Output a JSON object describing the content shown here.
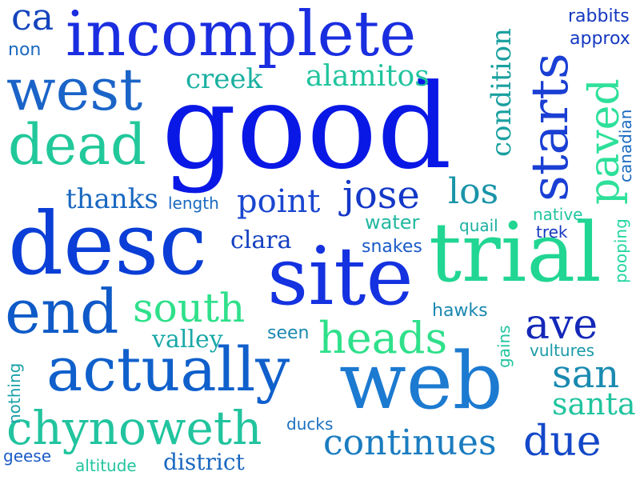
{
  "words": [
    {
      "key": "good",
      "text": "good",
      "color": "#0a18e6"
    },
    {
      "key": "site",
      "text": "site",
      "color": "#1432e0"
    },
    {
      "key": "trial",
      "text": "trial",
      "color": "#21d693"
    },
    {
      "key": "desc",
      "text": "desc",
      "color": "#0a3ed6"
    },
    {
      "key": "incomplete",
      "text": "incomplete",
      "color": "#1a2ee0"
    },
    {
      "key": "web",
      "text": "web",
      "color": "#1c7ad0"
    },
    {
      "key": "actually",
      "text": "actually",
      "color": "#1060cc"
    },
    {
      "key": "end",
      "text": "end",
      "color": "#0f5ac8"
    },
    {
      "key": "west",
      "text": "west",
      "color": "#1a64c8"
    },
    {
      "key": "dead",
      "text": "dead",
      "color": "#21c89a"
    },
    {
      "key": "starts",
      "text": "starts",
      "color": "#1a3fd4"
    },
    {
      "key": "paved",
      "text": "paved",
      "color": "#2ee09a"
    },
    {
      "key": "chynoweth",
      "text": "chynoweth",
      "color": "#21c49e"
    },
    {
      "key": "south",
      "text": "south",
      "color": "#2ee08a"
    },
    {
      "key": "heads",
      "text": "heads",
      "color": "#2ee08a"
    },
    {
      "key": "point",
      "text": "point",
      "color": "#1a46d0"
    },
    {
      "key": "jose",
      "text": "jose",
      "color": "#1438c8"
    },
    {
      "key": "ave",
      "text": "ave",
      "color": "#1428b8"
    },
    {
      "key": "san",
      "text": "san",
      "color": "#1a8ab0"
    },
    {
      "key": "due",
      "text": "due",
      "color": "#1448c8"
    },
    {
      "key": "continues",
      "text": "continues",
      "color": "#1a7cc0"
    },
    {
      "key": "santa",
      "text": "santa",
      "color": "#21c49e"
    },
    {
      "key": "los",
      "text": "los",
      "color": "#1a94a8"
    },
    {
      "key": "condition",
      "text": "condition",
      "color": "#1aa0a0"
    },
    {
      "key": "ca",
      "text": "ca",
      "color": "#1444bc"
    },
    {
      "key": "alamitos",
      "text": "alamitos",
      "color": "#21c49e"
    },
    {
      "key": "creek",
      "text": "creek",
      "color": "#1ab0a0"
    },
    {
      "key": "thanks",
      "text": "thanks",
      "color": "#1a68c0"
    },
    {
      "key": "clara",
      "text": "clara",
      "color": "#1440c0"
    },
    {
      "key": "valley",
      "text": "valley",
      "color": "#1aa8a8"
    },
    {
      "key": "district",
      "text": "district",
      "color": "#1a68c0"
    },
    {
      "key": "water",
      "text": "water",
      "color": "#21b8a0"
    },
    {
      "key": "seen",
      "text": "seen",
      "color": "#1a88b0"
    },
    {
      "key": "hawks",
      "text": "hawks",
      "color": "#1a88b0"
    },
    {
      "key": "snakes",
      "text": "snakes",
      "color": "#1a5ac8"
    },
    {
      "key": "quail",
      "text": "quail",
      "color": "#1ab0a0"
    },
    {
      "key": "native",
      "text": "native",
      "color": "#21c49e"
    },
    {
      "key": "trek",
      "text": "trek",
      "color": "#1438c0"
    },
    {
      "key": "pooping",
      "text": "pooping",
      "color": "#21d6a0"
    },
    {
      "key": "canadian",
      "text": "canadian",
      "color": "#1a6ac0"
    },
    {
      "key": "rabbits",
      "text": "rabbits",
      "color": "#1438c0"
    },
    {
      "key": "approx",
      "text": "approx",
      "color": "#1438c0"
    },
    {
      "key": "non",
      "text": "non",
      "color": "#1a6ac0"
    },
    {
      "key": "length",
      "text": "length",
      "color": "#1a6ac0"
    },
    {
      "key": "gains",
      "text": "gains",
      "color": "#21c49e"
    },
    {
      "key": "vultures",
      "text": "vultures",
      "color": "#1a9aa8"
    },
    {
      "key": "nothing",
      "text": "nothing",
      "color": "#1aa0a8"
    },
    {
      "key": "ducks",
      "text": "ducks",
      "color": "#1a70c0"
    },
    {
      "key": "geese",
      "text": "geese",
      "color": "#1a5ac8"
    },
    {
      "key": "altitude",
      "text": "altitude",
      "color": "#21c49e"
    }
  ]
}
